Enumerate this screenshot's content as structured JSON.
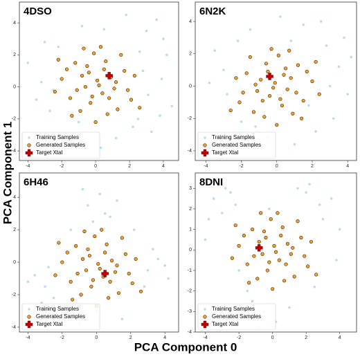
{
  "xlabel": "PCA Component 0",
  "ylabel": "PCA Component 1",
  "chart_data": [
    {
      "type": "scatter",
      "title": "4DSO",
      "xlim": [
        -4.5,
        4.9
      ],
      "ylim": [
        -4.6,
        5.3
      ],
      "xticks": [
        -4,
        -2,
        0,
        2,
        4
      ],
      "yticks": [
        -4,
        -2,
        0,
        2,
        4
      ],
      "legend": "lower left",
      "series": [
        {
          "name": "Training Samples",
          "color": "#add8e6",
          "marker": "o",
          "x": [
            -4,
            -3.2,
            -2.7,
            -3.5,
            -2.2,
            3.0,
            3.6,
            4.2,
            2.5,
            3.3,
            4.5,
            2.8,
            -1.5,
            1.2,
            0.5,
            -0.8,
            3.9,
            2.2,
            -2.5,
            -3.0,
            1.8,
            3.1,
            -1.0,
            0.3,
            4.0,
            -2.0,
            2.6,
            3.8
          ],
          "y": [
            1.5,
            0.3,
            -1.5,
            -0.8,
            2.5,
            3.5,
            4.2,
            2.0,
            -2.0,
            -2.8,
            -1.2,
            1.0,
            -3.5,
            -3.2,
            3.6,
            3.8,
            0.5,
            -2.5,
            -0.2,
            2.8,
            4.5,
            -0.5,
            -2.2,
            -3.8,
            3.0,
            -3.0,
            2.2,
            -1.8
          ]
        },
        {
          "name": "Generated Samples",
          "color": "#f0a030",
          "marker": "o",
          "x": [
            0.1,
            -0.8,
            1.1,
            -1.5,
            0.6,
            -0.3,
            1.7,
            -1.2,
            0.4,
            -0.6,
            2.1,
            -2.0,
            0.9,
            -0.1,
            1.3,
            -0.9,
            0.2,
            -1.7,
            2.3,
            -0.4,
            0.7,
            -2.4,
            1.5,
            -1.1,
            0.0,
            0.3,
            -1.4,
            1.9,
            -0.5,
            0.8,
            -2.2,
            1.2,
            -0.2,
            2.6,
            -0.7,
            0.5
          ],
          "y": [
            0.4,
            0.7,
            -0.1,
            -0.7,
            1.6,
            -1.0,
            1.0,
            1.5,
            -0.4,
            0.0,
            -0.8,
            0.5,
            0.6,
            2.1,
            -1.4,
            -1.5,
            0.1,
            1.1,
            0.7,
            0.9,
            -1.7,
            -0.3,
            2.0,
            -0.2,
            -2.2,
            2.5,
            -1.8,
            -0.2,
            1.3,
            -0.7,
            1.7,
            0.3,
            -0.6,
            -1.3,
            2.4,
            1.1
          ]
        },
        {
          "name": "Target Xtal",
          "color": "#c00000",
          "marker": "P",
          "x": [
            0.8
          ],
          "y": [
            0.7
          ]
        }
      ]
    },
    {
      "type": "scatter",
      "title": "6N2K",
      "xlim": [
        -4.6,
        4.5
      ],
      "ylim": [
        -4.6,
        5.2
      ],
      "xticks": [
        -4,
        -2,
        0,
        2,
        4
      ],
      "yticks": [
        -4,
        -2,
        0,
        2,
        4
      ],
      "legend": "lower left",
      "series": [
        {
          "name": "Training Samples",
          "color": "#add8e6",
          "marker": "o",
          "x": [
            -3.5,
            -2.8,
            -3.0,
            -2.2,
            2.8,
            3.5,
            4.0,
            3.2,
            -1.5,
            1.5,
            0.2,
            -0.5,
            2.2,
            -2.6,
            3.8,
            1.0,
            -3.8,
            2.5,
            0.8,
            -1.2,
            4.2,
            -2.0,
            3.0,
            1.8
          ],
          "y": [
            2.2,
            -0.5,
            1.0,
            2.8,
            2.5,
            1.2,
            -0.5,
            -2.0,
            3.5,
            3.8,
            4.3,
            -3.2,
            -2.8,
            -1.5,
            3.0,
            -3.6,
            0.2,
            4.0,
            2.8,
            -2.5,
            1.8,
            -2.2,
            0.0,
            -1.2
          ]
        },
        {
          "name": "Generated Samples",
          "color": "#f0a030",
          "marker": "o",
          "x": [
            -0.1,
            0.8,
            -1.1,
            1.5,
            -0.6,
            0.3,
            -1.7,
            1.2,
            -0.4,
            0.6,
            -2.1,
            2.0,
            -0.9,
            0.1,
            -1.3,
            0.9,
            -0.2,
            1.7,
            -2.3,
            0.4,
            -0.7,
            2.4,
            -1.5,
            1.1,
            0.0,
            -0.3,
            1.4,
            -1.9,
            0.5,
            -0.8,
            2.2,
            -1.2,
            0.2,
            -2.6,
            0.7,
            -0.5
          ],
          "y": [
            0.2,
            0.5,
            -0.3,
            -0.9,
            1.4,
            -1.2,
            0.8,
            1.3,
            -0.6,
            -0.2,
            -1.0,
            0.3,
            0.4,
            1.9,
            -1.6,
            -1.7,
            -0.1,
            0.9,
            0.5,
            0.7,
            -1.9,
            -0.5,
            1.8,
            -0.4,
            -2.4,
            2.3,
            -2.0,
            -0.4,
            1.1,
            -0.9,
            1.5,
            0.1,
            -0.8,
            -1.5,
            2.2,
            0.9
          ]
        },
        {
          "name": "Target Xtal",
          "color": "#c00000",
          "marker": "P",
          "x": [
            -0.4
          ],
          "y": [
            0.6
          ]
        }
      ]
    },
    {
      "type": "scatter",
      "title": "6H46",
      "xlim": [
        -4.5,
        4.8
      ],
      "ylim": [
        -4.3,
        5.5
      ],
      "xticks": [
        -4,
        -2,
        0,
        2,
        4
      ],
      "yticks": [
        -4,
        -2,
        0,
        2,
        4
      ],
      "legend": "lower left",
      "series": [
        {
          "name": "Training Samples",
          "color": "#add8e6",
          "marker": "o",
          "x": [
            -0.5,
            0.2,
            0.8,
            -0.2,
            0.5,
            1.2,
            -0.8,
            3.0,
            3.6,
            4.2,
            2.8,
            3.3,
            -3.0,
            -3.6,
            -2.5,
            -4.0,
            -2.8,
            0.0,
            1.5,
            -1.5,
            2.2,
            -1.0,
            4.0,
            -3.2
          ],
          "y": [
            3.5,
            4.2,
            2.8,
            2.5,
            3.0,
            3.8,
            4.5,
            -0.5,
            0.2,
            -1.0,
            -1.5,
            0.8,
            -1.5,
            -0.8,
            -2.2,
            -1.2,
            -0.3,
            -3.0,
            -3.5,
            2.0,
            2.0,
            -3.8,
            -0.2,
            -2.5
          ]
        },
        {
          "name": "Generated Samples",
          "color": "#f0a030",
          "marker": "o",
          "x": [
            0.1,
            -0.8,
            1.1,
            -1.5,
            0.6,
            -0.3,
            1.7,
            -1.2,
            0.4,
            -0.6,
            2.1,
            -2.0,
            0.9,
            -0.1,
            1.3,
            -0.9,
            0.2,
            -1.7,
            2.3,
            -0.4,
            0.7,
            -2.4,
            1.5,
            -1.1,
            0.0,
            0.3,
            -1.4,
            1.9,
            -0.5,
            0.8,
            -2.2,
            1.2,
            -0.2,
            2.6,
            -0.7,
            0.5
          ],
          "y": [
            -0.1,
            0.2,
            -0.6,
            -1.2,
            1.1,
            -1.5,
            0.5,
            1.0,
            -0.9,
            -0.5,
            -1.3,
            0.0,
            0.1,
            1.6,
            -1.9,
            -2.0,
            -0.4,
            0.6,
            0.2,
            0.4,
            -2.2,
            -0.8,
            1.5,
            -0.7,
            -2.7,
            2.0,
            -2.3,
            -0.7,
            0.8,
            -1.2,
            1.2,
            -0.2,
            -1.1,
            -1.8,
            1.9,
            0.6
          ]
        },
        {
          "name": "Target Xtal",
          "color": "#c00000",
          "marker": "P",
          "x": [
            0.5
          ],
          "y": [
            -0.7
          ]
        }
      ]
    },
    {
      "type": "scatter",
      "title": "8DNI",
      "xlim": [
        -4.6,
        5.0
      ],
      "ylim": [
        -4.0,
        3.75
      ],
      "xticks": [
        -4,
        -2,
        0,
        2,
        4
      ],
      "yticks": [
        -4,
        -3,
        -2,
        -1,
        0,
        1,
        2,
        3
      ],
      "legend": "lower left",
      "series": [
        {
          "name": "Training Samples",
          "color": "#add8e6",
          "marker": "o",
          "x": [
            -3.5,
            -2.8,
            -3.0,
            -2.2,
            -3.8,
            -2.5,
            2.0,
            2.8,
            3.5,
            2.2,
            3.0,
            1.5,
            4.0,
            -1.2,
            -0.5,
            -1.5,
            0.2,
            -0.8,
            -2.0,
            3.8,
            -4.0,
            2.5,
            1.0,
            -0.2
          ],
          "y": [
            2.5,
            3.0,
            1.8,
            2.2,
            1.5,
            2.8,
            2.8,
            2.2,
            2.5,
            3.2,
            1.5,
            3.0,
            1.0,
            -2.5,
            -3.0,
            -2.0,
            -3.5,
            -3.8,
            -1.0,
            -0.5,
            0.5,
            -1.8,
            -2.8,
            2.0
          ]
        },
        {
          "name": "Generated Samples",
          "color": "#f0a030",
          "marker": "o",
          "x": [
            0.1,
            -0.8,
            1.1,
            -1.5,
            0.6,
            -0.3,
            1.7,
            -1.2,
            0.4,
            -0.6,
            2.1,
            -2.0,
            0.9,
            -0.1,
            1.3,
            -0.9,
            0.2,
            -1.7,
            2.3,
            -0.4,
            0.7,
            -2.4,
            1.5,
            -1.1,
            0.0,
            0.3,
            -1.4,
            1.9,
            -0.5,
            0.8,
            -2.2,
            1.2,
            -0.2,
            2.6,
            -0.7,
            0.5
          ],
          "y": [
            0.2,
            0.4,
            -0.2,
            -0.7,
            1.1,
            -1.0,
            0.6,
            1.0,
            -0.5,
            -0.2,
            -0.8,
            0.2,
            0.3,
            1.5,
            -1.3,
            -1.4,
            -0.1,
            0.7,
            0.4,
            0.6,
            -1.5,
            -0.4,
            1.4,
            -0.3,
            -1.9,
            1.8,
            -1.6,
            -0.3,
            0.9,
            -0.7,
            1.2,
            0.1,
            -0.6,
            -1.2,
            1.8,
            0.7
          ]
        },
        {
          "name": "Target Xtal",
          "color": "#c00000",
          "marker": "P",
          "x": [
            -0.8
          ],
          "y": [
            0.1
          ]
        }
      ]
    }
  ]
}
